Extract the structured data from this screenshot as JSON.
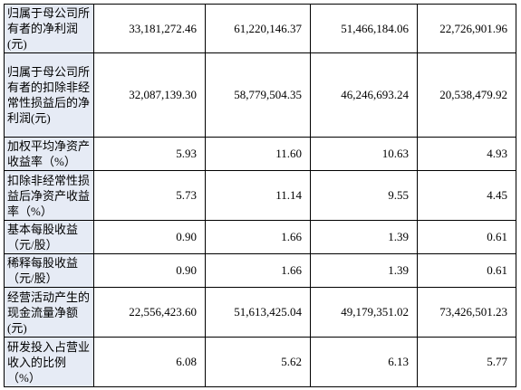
{
  "table": {
    "rows": [
      {
        "label": "归属于母公司所有者的净利润(元)",
        "values": [
          "33,181,272.46",
          "61,220,146.37",
          "51,466,184.06",
          "22,726,901.96"
        ]
      },
      {
        "label": "归属于母公司所有者的扣除非经常性损益后的净利润(元)",
        "values": [
          "32,087,139.30",
          "58,779,504.35",
          "46,246,693.24",
          "20,538,479.92"
        ]
      },
      {
        "label": "加权平均净资产收益率（%）",
        "values": [
          "5.93",
          "11.60",
          "10.63",
          "4.93"
        ]
      },
      {
        "label": "扣除非经常性损益后净资产收益率（%）",
        "values": [
          "5.73",
          "11.14",
          "9.55",
          "4.45"
        ]
      },
      {
        "label": "基本每股收益（元/股）",
        "values": [
          "0.90",
          "1.66",
          "1.39",
          "0.61"
        ]
      },
      {
        "label": "稀释每股收益（元/股）",
        "values": [
          "0.90",
          "1.66",
          "1.39",
          "0.61"
        ]
      },
      {
        "label": "经营活动产生的现金流量净额(元)",
        "values": [
          "22,556,423.60",
          "51,613,425.04",
          "49,179,351.02",
          "73,426,501.23"
        ]
      },
      {
        "label": "研发投入占营业收入的比例（%）",
        "values": [
          "6.08",
          "5.62",
          "6.13",
          "5.77"
        ]
      }
    ]
  }
}
